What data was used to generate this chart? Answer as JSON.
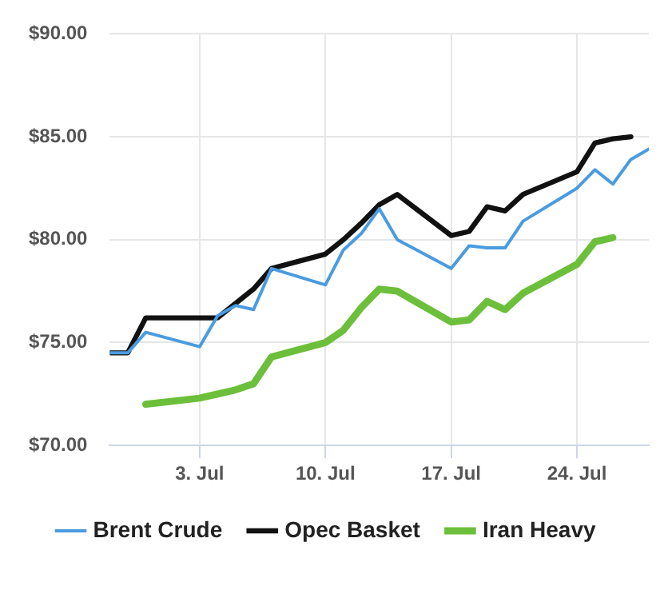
{
  "chart_data": {
    "type": "line",
    "xlim": [
      "--06-28",
      "--07-28"
    ],
    "xticks": [
      {
        "value": "--07-03",
        "label": "3. Jul"
      },
      {
        "value": "--07-10",
        "label": "10. Jul"
      },
      {
        "value": "--07-17",
        "label": "17. Jul"
      },
      {
        "value": "--07-24",
        "label": "24. Jul"
      }
    ],
    "ylim": [
      70,
      90
    ],
    "yticks": [
      {
        "value": 70,
        "label": "$70.00"
      },
      {
        "value": 75,
        "label": "$75.00"
      },
      {
        "value": 80,
        "label": "$80.00"
      },
      {
        "value": 85,
        "label": "$85.00"
      },
      {
        "value": 90,
        "label": "$90.00"
      }
    ],
    "grid": true,
    "legend": "bottom",
    "marker": "none",
    "line_style": "solid",
    "series": [
      {
        "name": "Brent Crude",
        "color": "#4a9be0",
        "x": [
          "--06-28",
          "--06-29",
          "--06-30",
          "--07-03",
          "--07-04",
          "--07-05",
          "--07-06",
          "--07-07",
          "--07-10",
          "--07-11",
          "--07-12",
          "--07-13",
          "--07-14",
          "--07-17",
          "--07-18",
          "--07-19",
          "--07-20",
          "--07-21",
          "--07-24",
          "--07-25",
          "--07-26",
          "--07-27",
          "--07-28"
        ],
        "values": [
          74.5,
          74.5,
          75.5,
          74.8,
          76.3,
          76.8,
          76.6,
          78.6,
          77.8,
          79.5,
          80.3,
          81.5,
          80.0,
          78.6,
          79.7,
          79.6,
          79.6,
          80.9,
          82.5,
          83.4,
          82.7,
          83.9,
          84.4
        ]
      },
      {
        "name": "Opec Basket",
        "color": "#111111",
        "x": [
          "--06-28",
          "--06-29",
          "--06-30",
          "--07-03",
          "--07-04",
          "--07-05",
          "--07-06",
          "--07-07",
          "--07-10",
          "--07-11",
          "--07-12",
          "--07-13",
          "--07-14",
          "--07-17",
          "--07-18",
          "--07-19",
          "--07-20",
          "--07-21",
          "--07-24",
          "--07-25",
          "--07-26",
          "--07-27"
        ],
        "values": [
          74.5,
          74.5,
          76.2,
          76.2,
          76.2,
          76.9,
          77.6,
          78.6,
          79.3,
          80.0,
          80.8,
          81.7,
          82.2,
          80.2,
          80.4,
          81.6,
          81.4,
          82.2,
          83.3,
          84.7,
          84.9,
          85.0
        ]
      },
      {
        "name": "Iran Heavy",
        "color": "#6cbf3a",
        "x": [
          "--06-30",
          "--07-03",
          "--07-04",
          "--07-05",
          "--07-06",
          "--07-07",
          "--07-10",
          "--07-11",
          "--07-12",
          "--07-13",
          "--07-14",
          "--07-17",
          "--07-18",
          "--07-19",
          "--07-20",
          "--07-21",
          "--07-24",
          "--07-25",
          "--07-26"
        ],
        "values": [
          72.0,
          72.3,
          72.5,
          72.7,
          73.0,
          74.3,
          75.0,
          75.6,
          76.7,
          77.6,
          77.5,
          76.0,
          76.1,
          77.0,
          76.6,
          77.4,
          78.8,
          79.9,
          80.1
        ]
      }
    ]
  }
}
